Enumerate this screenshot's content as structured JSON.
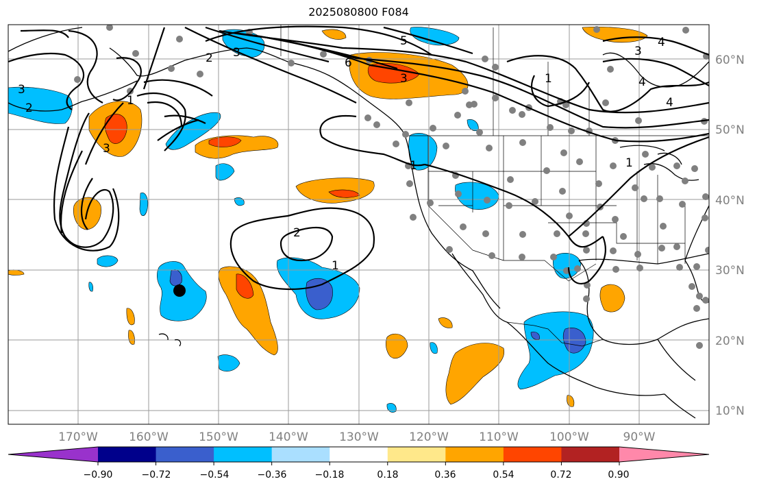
{
  "title": "2025080800 F084",
  "lat_labels": [
    "60°N",
    "50°N",
    "40°N",
    "30°N",
    "20°N",
    "10°N"
  ],
  "lon_labels": [
    "170°W",
    "160°W",
    "150°W",
    "140°W",
    "130°W",
    "120°W",
    "110°W",
    "100°W",
    "90°W"
  ],
  "colorbar": {
    "ticks": [
      "−0.90",
      "−0.72",
      "−0.54",
      "−0.36",
      "−0.18",
      "0.18",
      "0.36",
      "0.54",
      "0.72",
      "0.90"
    ],
    "colors": [
      "#9932cc",
      "#00008b",
      "#3a5fcd",
      "#00bfff",
      "#aadfff",
      "#ffffff",
      "#ffe88a",
      "#ffa500",
      "#ff4500",
      "#b22222",
      "#ff88aa"
    ]
  },
  "contour_labels": [
    "3",
    "2",
    "1",
    "3",
    "2",
    "1",
    "5",
    "6",
    "3",
    "3",
    "4",
    "4",
    "4",
    "1",
    "2",
    "1",
    "1",
    "3"
  ],
  "colors": {
    "purple": "#9932cc",
    "navy": "#00008b",
    "blue": "#3a5fcd",
    "deepsky": "#00bfff",
    "lightblue": "#aadfff",
    "yellow": "#ffe88a",
    "orange": "#ffa500",
    "red": "#ff4500",
    "darkred": "#b22222",
    "pink": "#ff88aa"
  }
}
